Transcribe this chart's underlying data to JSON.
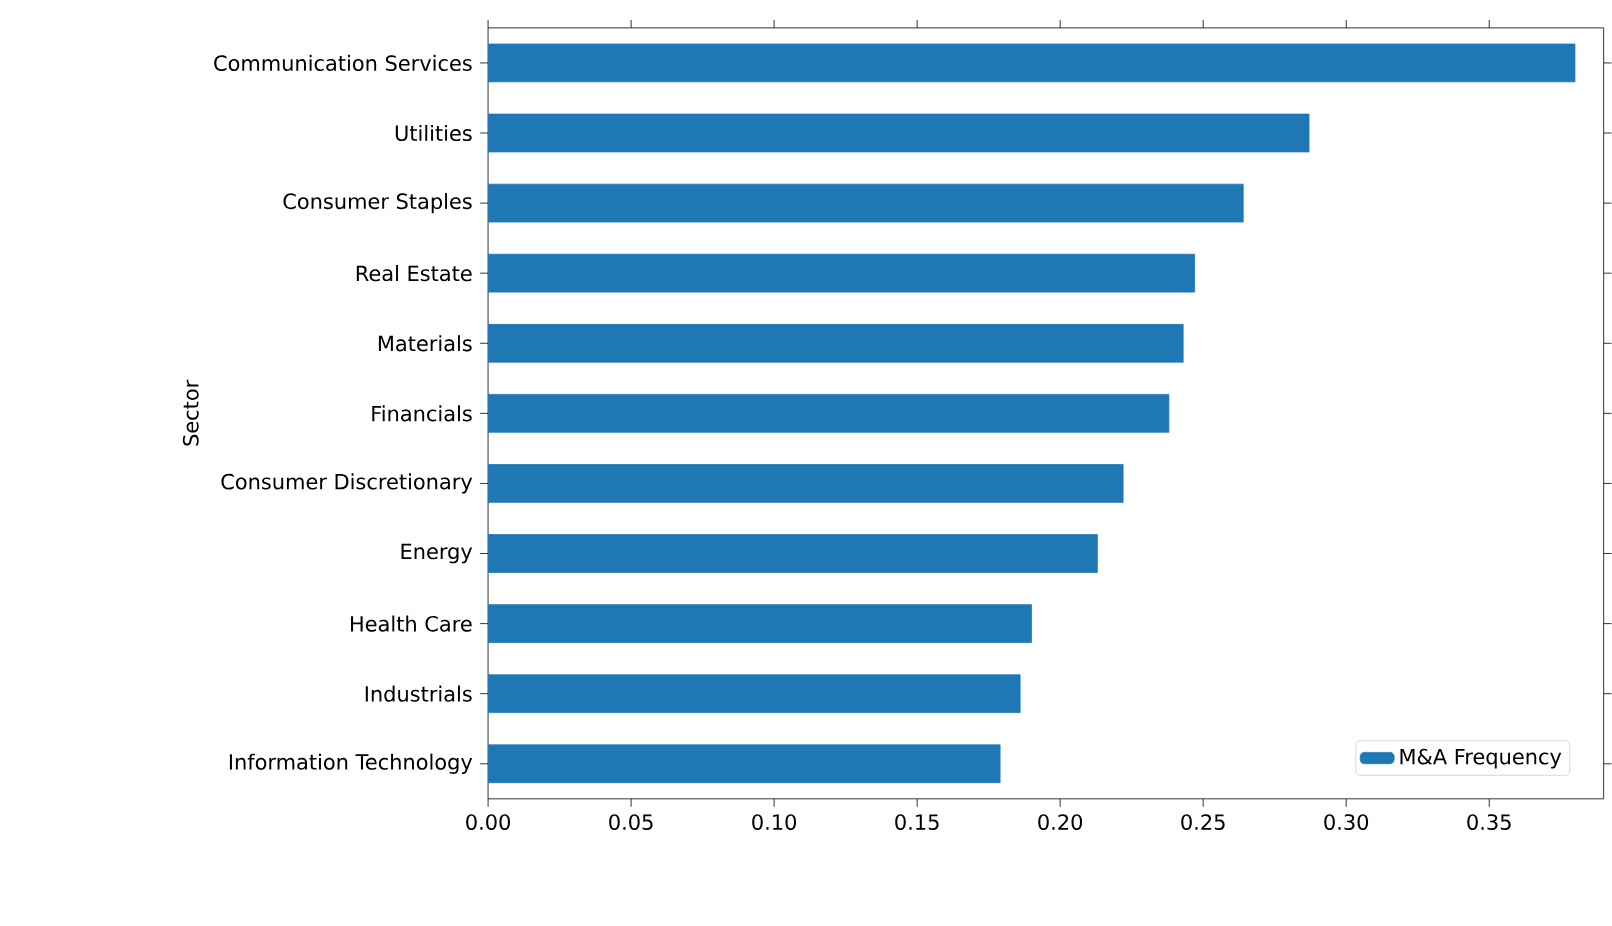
{
  "chart_data": {
    "type": "bar",
    "orientation": "horizontal",
    "ylabel": "Sector",
    "categories": [
      "Communication Services",
      "Utilities",
      "Consumer Staples",
      "Real Estate",
      "Materials",
      "Financials",
      "Consumer Discretionary",
      "Energy",
      "Health Care",
      "Industrials",
      "Information Technology"
    ],
    "series": [
      {
        "name": "M&A Frequency",
        "color": "#1f77b4",
        "values": [
          0.38,
          0.287,
          0.264,
          0.247,
          0.243,
          0.238,
          0.222,
          0.213,
          0.19,
          0.186,
          0.179
        ]
      }
    ],
    "xlim": [
      0,
      0.39
    ],
    "xticks": [
      {
        "value": 0,
        "label": "0.00"
      },
      {
        "value": 0.05,
        "label": "0.05"
      },
      {
        "value": 0.1,
        "label": "0.10"
      },
      {
        "value": 0.15,
        "label": "0.15"
      },
      {
        "value": 0.2,
        "label": "0.20"
      },
      {
        "value": 0.25,
        "label": "0.25"
      },
      {
        "value": 0.3,
        "label": "0.30"
      },
      {
        "value": 0.35,
        "label": "0.35"
      }
    ],
    "legend": "bottom right",
    "grid": false
  }
}
